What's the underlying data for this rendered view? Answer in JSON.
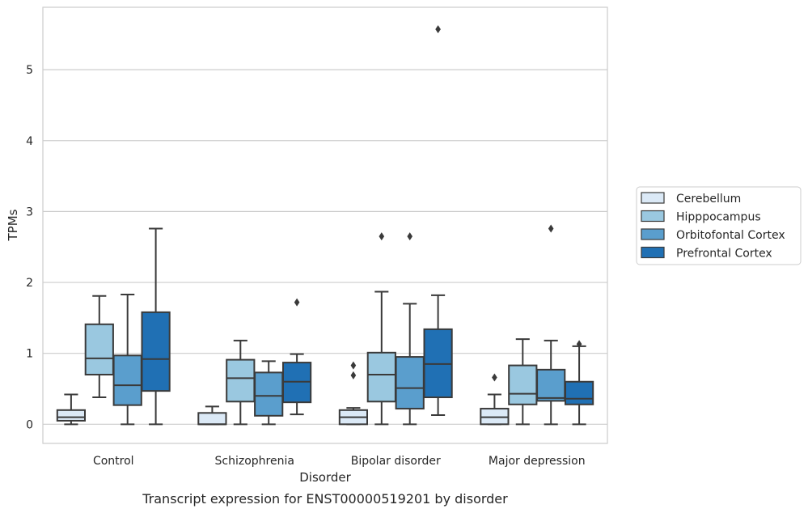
{
  "chart_data": {
    "type": "box",
    "caption": "Transcript expression for ENST00000519201 by disorder",
    "xlabel": "Disorder",
    "ylabel": "TPMs",
    "ylim": [
      -0.27,
      5.88
    ],
    "yticks": [
      0,
      1,
      2,
      3,
      4,
      5
    ],
    "grid": "horizontal",
    "legend_position": "right",
    "categories": [
      "Control",
      "Schizophrenia",
      "Bipolar disorder",
      "Major depression"
    ],
    "series": [
      {
        "name": "Cerebellum",
        "color": "#dbe9f6",
        "boxes": [
          {
            "whislo": 0.0,
            "q1": 0.05,
            "med": 0.1,
            "q3": 0.2,
            "whishi": 0.42,
            "fliers": []
          },
          {
            "whislo": 0.0,
            "q1": 0.0,
            "med": 0.0,
            "q3": 0.16,
            "whishi": 0.25,
            "fliers": []
          },
          {
            "whislo": 0.0,
            "q1": 0.0,
            "med": 0.1,
            "q3": 0.2,
            "whishi": 0.23,
            "fliers": [
              0.69,
              0.83
            ]
          },
          {
            "whislo": 0.0,
            "q1": 0.0,
            "med": 0.1,
            "q3": 0.22,
            "whishi": 0.42,
            "fliers": [
              0.66
            ]
          }
        ]
      },
      {
        "name": "Hipppocampus",
        "color": "#9ac8e0",
        "boxes": [
          {
            "whislo": 0.38,
            "q1": 0.7,
            "med": 0.93,
            "q3": 1.41,
            "whishi": 1.81,
            "fliers": []
          },
          {
            "whislo": 0.0,
            "q1": 0.32,
            "med": 0.65,
            "q3": 0.91,
            "whishi": 1.18,
            "fliers": []
          },
          {
            "whislo": 0.0,
            "q1": 0.32,
            "med": 0.7,
            "q3": 1.01,
            "whishi": 1.87,
            "fliers": [
              2.65
            ]
          },
          {
            "whislo": 0.0,
            "q1": 0.28,
            "med": 0.43,
            "q3": 0.83,
            "whishi": 1.2,
            "fliers": []
          }
        ]
      },
      {
        "name": "Orbitofontal Cortex",
        "color": "#5a9ecd",
        "boxes": [
          {
            "whislo": 0.0,
            "q1": 0.27,
            "med": 0.55,
            "q3": 0.97,
            "whishi": 1.83,
            "fliers": []
          },
          {
            "whislo": 0.0,
            "q1": 0.12,
            "med": 0.4,
            "q3": 0.73,
            "whishi": 0.89,
            "fliers": []
          },
          {
            "whislo": 0.0,
            "q1": 0.22,
            "med": 0.51,
            "q3": 0.95,
            "whishi": 1.7,
            "fliers": [
              2.65
            ]
          },
          {
            "whislo": 0.0,
            "q1": 0.33,
            "med": 0.37,
            "q3": 0.77,
            "whishi": 1.18,
            "fliers": [
              2.76
            ]
          }
        ]
      },
      {
        "name": "Prefrontal Cortex",
        "color": "#2070b4",
        "boxes": [
          {
            "whislo": 0.0,
            "q1": 0.47,
            "med": 0.92,
            "q3": 1.58,
            "whishi": 2.76,
            "fliers": []
          },
          {
            "whislo": 0.14,
            "q1": 0.31,
            "med": 0.6,
            "q3": 0.87,
            "whishi": 0.99,
            "fliers": [
              1.72
            ]
          },
          {
            "whislo": 0.13,
            "q1": 0.38,
            "med": 0.85,
            "q3": 1.34,
            "whishi": 1.82,
            "fliers": [
              5.57
            ]
          },
          {
            "whislo": 0.0,
            "q1": 0.28,
            "med": 0.36,
            "q3": 0.6,
            "whishi": 1.1,
            "fliers": [
              1.13
            ]
          }
        ]
      }
    ]
  }
}
